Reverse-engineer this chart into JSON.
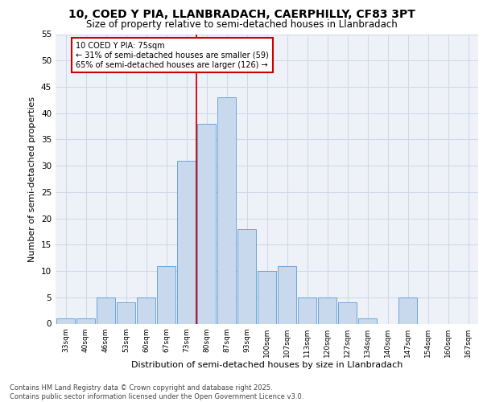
{
  "title_line1": "10, COED Y PIA, LLANBRADACH, CAERPHILLY, CF83 3PT",
  "title_line2": "Size of property relative to semi-detached houses in Llanbradach",
  "xlabel": "Distribution of semi-detached houses by size in Llanbradach",
  "ylabel": "Number of semi-detached properties",
  "categories": [
    "33sqm",
    "40sqm",
    "46sqm",
    "53sqm",
    "60sqm",
    "67sqm",
    "73sqm",
    "80sqm",
    "87sqm",
    "93sqm",
    "100sqm",
    "107sqm",
    "113sqm",
    "120sqm",
    "127sqm",
    "134sqm",
    "140sqm",
    "147sqm",
    "154sqm",
    "160sqm",
    "167sqm"
  ],
  "values": [
    1,
    1,
    5,
    4,
    5,
    11,
    31,
    38,
    43,
    18,
    10,
    11,
    5,
    5,
    4,
    1,
    0,
    5,
    0,
    0,
    0
  ],
  "bar_color": "#c9d9ed",
  "bar_edge_color": "#5b9bd5",
  "pct_smaller": 31,
  "count_smaller": 59,
  "pct_larger": 65,
  "count_larger": 126,
  "annotation_box_color": "#cc0000",
  "grid_color": "#d0d8e8",
  "background_color": "#eef2f8",
  "ylim": [
    0,
    55
  ],
  "yticks": [
    0,
    5,
    10,
    15,
    20,
    25,
    30,
    35,
    40,
    45,
    50,
    55
  ],
  "footer_line1": "Contains HM Land Registry data © Crown copyright and database right 2025.",
  "footer_line2": "Contains public sector information licensed under the Open Government Licence v3.0."
}
